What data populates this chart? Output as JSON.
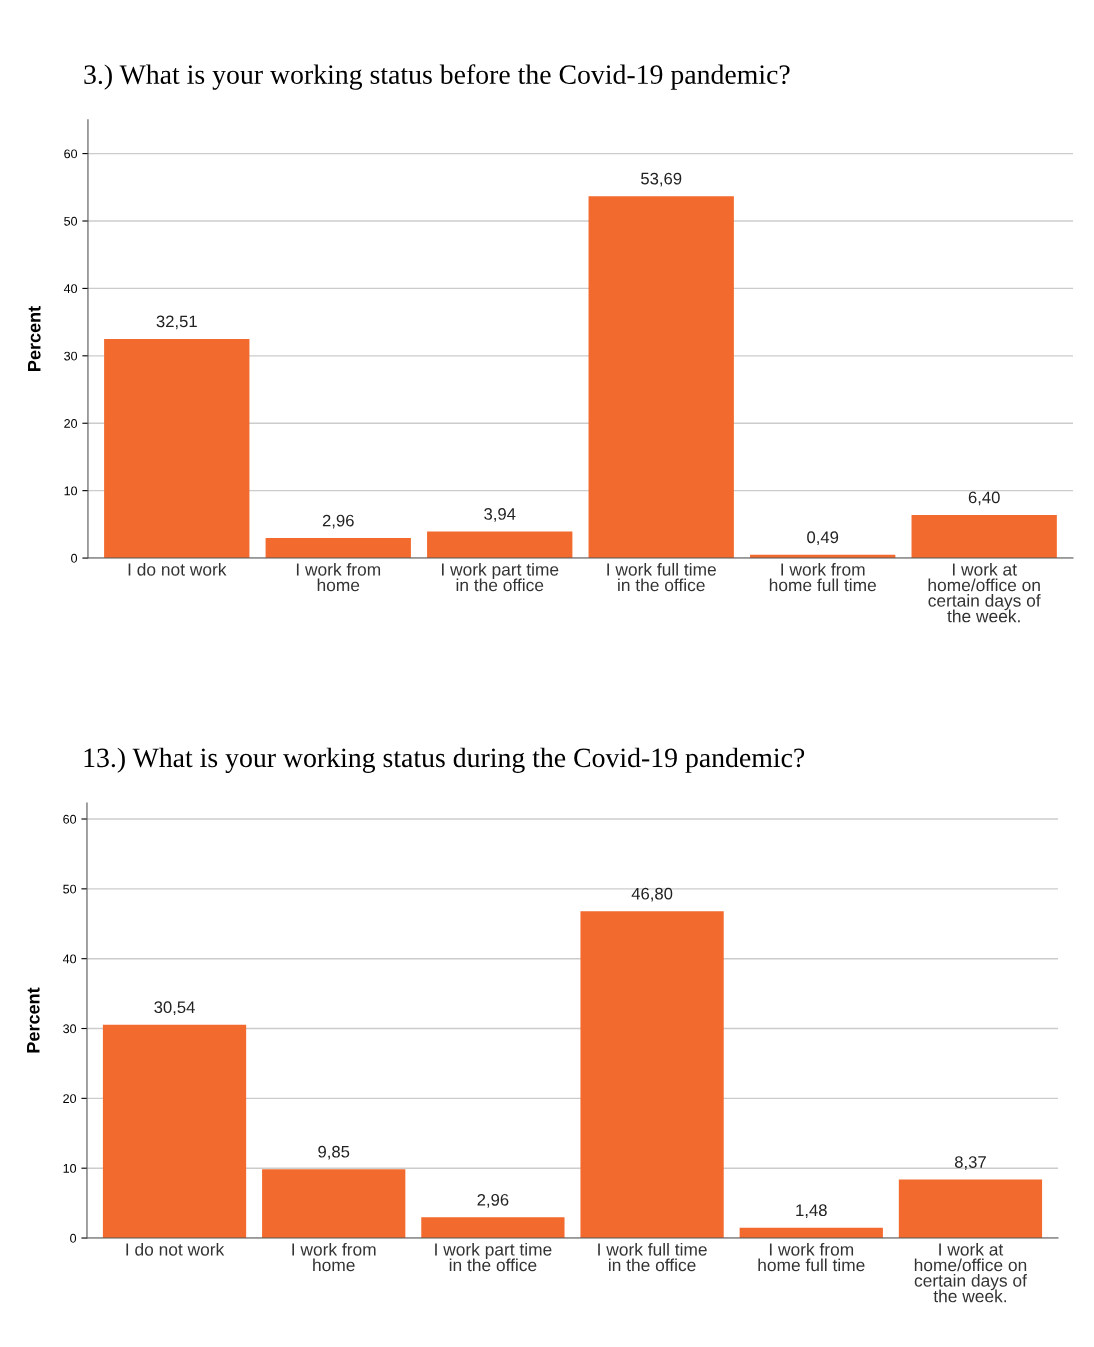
{
  "chart_data": [
    {
      "type": "bar",
      "title": "3.) What is your working status before the Covid-19 pandemic?",
      "ylabel": "Percent",
      "categories": [
        "I do not work",
        "I work from\nhome",
        "I work part time\nin the office",
        "I work full time\nin the office",
        "I work from\nhome full time",
        "I work at\nhome/office on\ncertain days of\nthe week."
      ],
      "values": [
        32.51,
        2.96,
        3.94,
        53.69,
        0.49,
        6.4
      ],
      "value_labels": [
        "32,51",
        "2,96",
        "3,94",
        "53,69",
        "0,49",
        "6,40"
      ],
      "color": "#f26a2e",
      "ylim": [
        0,
        65
      ],
      "yticks": [
        0,
        10,
        20,
        30,
        40,
        50,
        60
      ],
      "grid": "y"
    },
    {
      "type": "bar",
      "title": "13.) What is your working status during the Covid-19 pandemic?",
      "ylabel": "Percent",
      "categories": [
        "I do not work",
        "I work from\nhome",
        "I work part time\nin the office",
        "I work full time\nin the office",
        "I work from\nhome full time",
        "I work at\nhome/office on\ncertain days of\nthe week."
      ],
      "values": [
        30.54,
        9.85,
        2.96,
        46.8,
        1.48,
        8.37
      ],
      "value_labels": [
        "30,54",
        "9,85",
        "2,96",
        "46,80",
        "1,48",
        "8,37"
      ],
      "color": "#f26a2e",
      "ylim": [
        0,
        62.3
      ],
      "yticks": [
        0,
        10,
        20,
        30,
        40,
        50,
        60
      ],
      "grid": "y"
    }
  ]
}
